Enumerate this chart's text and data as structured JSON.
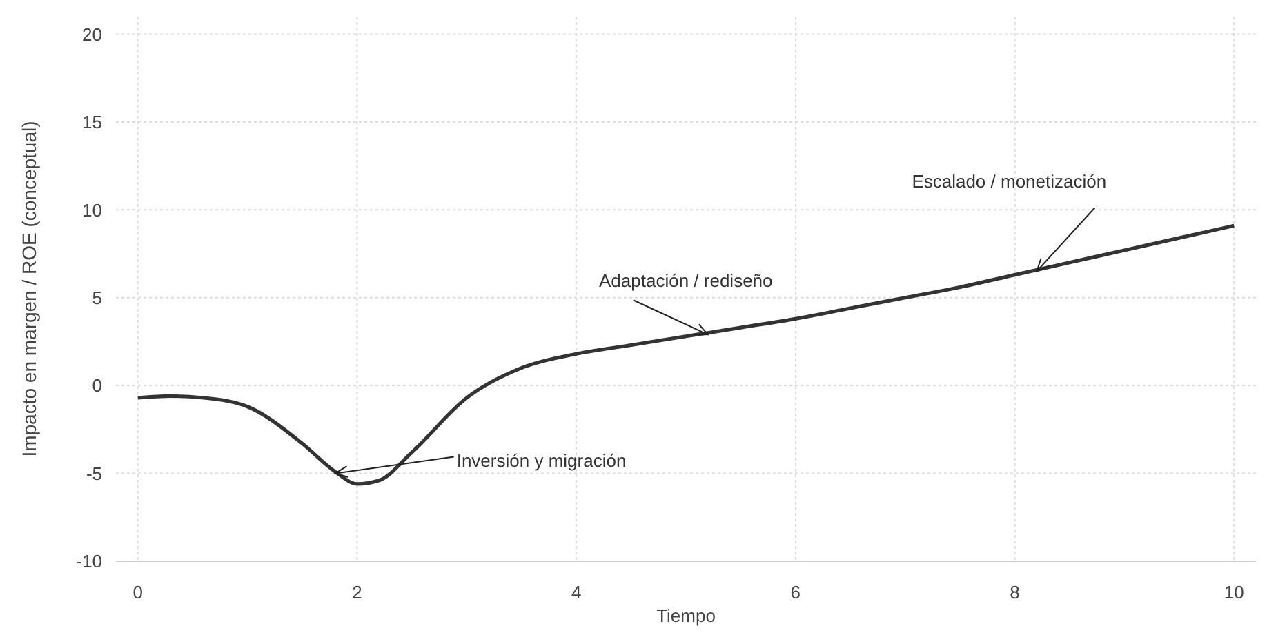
{
  "chart_data": {
    "type": "line",
    "xlabel": "Tiempo",
    "ylabel": "Impacto en margen / ROE (conceptual)",
    "xlim": [
      -0.2,
      10.2
    ],
    "xticks": [
      0,
      2,
      4,
      6,
      8,
      10
    ],
    "ylim": [
      -10,
      21
    ],
    "yticks": [
      -10,
      -5,
      0,
      5,
      10,
      15,
      20
    ],
    "grid": true,
    "marker": "none",
    "line_style": "solid",
    "series": [
      {
        "color": "#333333",
        "x": [
          0,
          0.3,
          0.6,
          1,
          1.5,
          1.8,
          2,
          2.2,
          2.5,
          3,
          3.5,
          4,
          4.5,
          5,
          5.5,
          6,
          6.5,
          7,
          7.5,
          8,
          8.5,
          9,
          9.5,
          10
        ],
        "values": [
          -0.7,
          -0.6,
          -0.7,
          -1.2,
          -3.3,
          -4.9,
          -5.6,
          -5.4,
          -3.8,
          -0.7,
          1.0,
          1.8,
          2.3,
          2.8,
          3.3,
          3.8,
          4.4,
          5.0,
          5.6,
          6.3,
          7.0,
          7.7,
          8.4,
          9.1
        ]
      }
    ],
    "annotations": [
      {
        "text": "Inversión y migración",
        "x": 1.8,
        "y": -5.0
      },
      {
        "text": "Adaptación / rediseño",
        "x": 5.2,
        "y": 2.9
      },
      {
        "text": "Escalado / monetización",
        "x": 8.2,
        "y": 6.5
      }
    ]
  }
}
